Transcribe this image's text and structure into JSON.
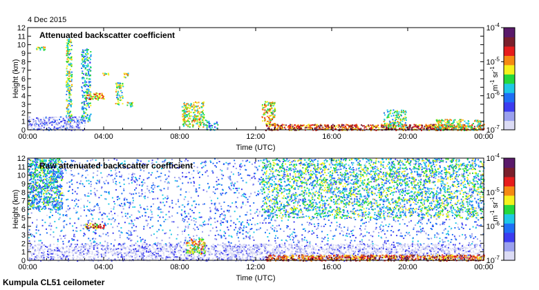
{
  "page": {
    "date_label": "4 Dec 2015",
    "footer_label": "Kumpula CL51 ceilometer"
  },
  "colors": {
    "background": "#ffffff",
    "axis": "#000000",
    "colormap": [
      "#ffffff",
      "#dcdcf5",
      "#9aa0ee",
      "#3c3cf0",
      "#1f6ff5",
      "#1fc8e6",
      "#25d83c",
      "#f5f21c",
      "#f58a12",
      "#e61c1c",
      "#7a1f2c",
      "#5a1a6a"
    ]
  },
  "chart_data": [
    {
      "type": "heatmap",
      "title": "Attenuated backscatter coefficient",
      "xlabel": "Time (UTC)",
      "ylabel": "Height (km)",
      "xlim": [
        0,
        24
      ],
      "ylim": [
        0,
        12
      ],
      "x_ticks": [
        "00:00",
        "04:00",
        "08:00",
        "12:00",
        "16:00",
        "20:00",
        "00:00"
      ],
      "y_ticks": [
        "0",
        "1",
        "2",
        "3",
        "4",
        "5",
        "6",
        "7",
        "8",
        "9",
        "10",
        "11",
        "12"
      ],
      "colorbar": {
        "label_base": "m",
        "label_exp1": "-1",
        "label_mid": " sr",
        "label_exp2": "-1",
        "scale": "log",
        "ticks": [
          {
            "base": "10",
            "exp": "-4"
          },
          {
            "base": "10",
            "exp": "-5"
          },
          {
            "base": "10",
            "exp": "-6"
          },
          {
            "base": "10",
            "exp": "-7"
          }
        ]
      },
      "features": [
        {
          "t0": 0.0,
          "t1": 3.0,
          "h0": 0.0,
          "h1": 1.6,
          "level": 0.18,
          "density": 0.55
        },
        {
          "t0": 2.0,
          "t1": 2.3,
          "h0": 1.0,
          "h1": 10.8,
          "level": 0.55,
          "density": 0.6
        },
        {
          "t0": 2.8,
          "t1": 3.3,
          "h0": 1.0,
          "h1": 9.6,
          "level": 0.45,
          "density": 0.45
        },
        {
          "t0": 3.0,
          "t1": 4.0,
          "h0": 3.6,
          "h1": 4.4,
          "level": 0.7,
          "density": 0.7
        },
        {
          "t0": 0.4,
          "t1": 0.9,
          "h0": 9.4,
          "h1": 9.8,
          "level": 0.6,
          "density": 0.8
        },
        {
          "t0": 3.9,
          "t1": 4.3,
          "h0": 6.4,
          "h1": 6.7,
          "level": 0.6,
          "density": 0.8
        },
        {
          "t0": 4.6,
          "t1": 5.0,
          "h0": 3.0,
          "h1": 5.6,
          "level": 0.55,
          "density": 0.5
        },
        {
          "t0": 5.0,
          "t1": 5.3,
          "h0": 6.2,
          "h1": 6.7,
          "level": 0.6,
          "density": 0.8
        },
        {
          "t0": 5.2,
          "t1": 5.5,
          "h0": 2.6,
          "h1": 3.4,
          "level": 0.6,
          "density": 0.7
        },
        {
          "t0": 8.1,
          "t1": 9.3,
          "h0": 0.4,
          "h1": 3.4,
          "level": 0.6,
          "density": 0.55
        },
        {
          "t0": 9.3,
          "t1": 10.0,
          "h0": 0.0,
          "h1": 1.2,
          "level": 0.4,
          "density": 0.4
        },
        {
          "t0": 12.3,
          "t1": 13.0,
          "h0": 0.6,
          "h1": 3.4,
          "level": 0.65,
          "density": 0.55
        },
        {
          "t0": 12.5,
          "t1": 24.0,
          "h0": 0.0,
          "h1": 0.7,
          "level": 0.8,
          "density": 0.75
        },
        {
          "t0": 18.7,
          "t1": 19.9,
          "h0": 0.3,
          "h1": 2.4,
          "level": 0.55,
          "density": 0.45
        },
        {
          "t0": 21.4,
          "t1": 24.0,
          "h0": 0.0,
          "h1": 1.3,
          "level": 0.6,
          "density": 0.5
        }
      ]
    },
    {
      "type": "heatmap",
      "title": "Raw attenuated backscatter coefficient",
      "xlabel": "Time (UTC)",
      "ylabel": "Height (km)",
      "xlim": [
        0,
        24
      ],
      "ylim": [
        0,
        12
      ],
      "x_ticks": [
        "00:00",
        "04:00",
        "08:00",
        "12:00",
        "16:00",
        "20:00",
        "00:00"
      ],
      "y_ticks": [
        "0",
        "1",
        "2",
        "3",
        "4",
        "5",
        "6",
        "7",
        "8",
        "9",
        "10",
        "11",
        "12"
      ],
      "colorbar": {
        "label_base": "m",
        "label_exp1": "-1",
        "label_mid": " sr",
        "label_exp2": "-1",
        "scale": "log",
        "ticks": [
          {
            "base": "10",
            "exp": "-4"
          },
          {
            "base": "10",
            "exp": "-5"
          },
          {
            "base": "10",
            "exp": "-6"
          },
          {
            "base": "10",
            "exp": "-7"
          }
        ]
      },
      "features": [
        {
          "t0": 0.0,
          "t1": 24.0,
          "h0": 2.0,
          "h1": 12.0,
          "level": 0.3,
          "density": 0.6
        },
        {
          "t0": 0.0,
          "t1": 1.8,
          "h0": 6.0,
          "h1": 12.0,
          "level": 0.45,
          "density": 0.55
        },
        {
          "t0": 12.3,
          "t1": 24.0,
          "h0": 5.0,
          "h1": 12.0,
          "level": 0.5,
          "density": 0.7
        },
        {
          "t0": 0.0,
          "t1": 24.0,
          "h0": 0.0,
          "h1": 2.0,
          "level": 0.12,
          "density": 0.75
        },
        {
          "t0": 3.0,
          "t1": 4.0,
          "h0": 3.8,
          "h1": 4.4,
          "level": 0.75,
          "density": 0.8
        },
        {
          "t0": 8.3,
          "t1": 9.3,
          "h0": 0.8,
          "h1": 2.6,
          "level": 0.65,
          "density": 0.6
        },
        {
          "t0": 12.5,
          "t1": 24.0,
          "h0": 0.0,
          "h1": 0.7,
          "level": 0.8,
          "density": 0.75
        }
      ]
    }
  ]
}
